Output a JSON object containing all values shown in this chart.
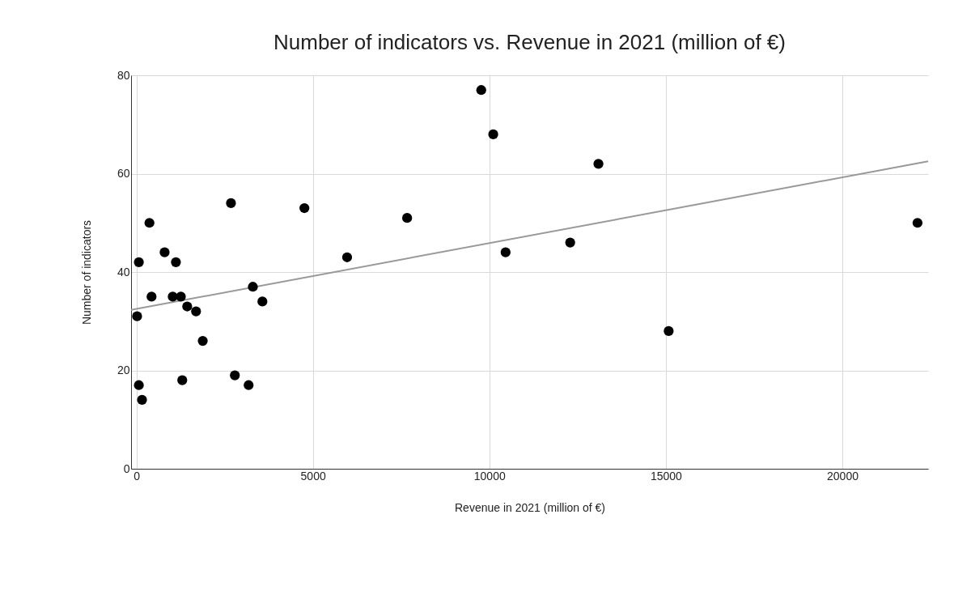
{
  "chart_data": {
    "type": "scatter",
    "title": "Number of indicators vs. Revenue in 2021 (million of €)",
    "xlabel": "Revenue in 2021 (million of €)",
    "ylabel": "Number of indicators",
    "xlim": [
      -150,
      22430
    ],
    "xticks": [
      0,
      5000,
      10000,
      15000,
      20000
    ],
    "ylim": [
      0,
      80
    ],
    "yticks": [
      0,
      20,
      40,
      60,
      80
    ],
    "grid": true,
    "marker": "circle",
    "series": [
      {
        "color": "#000000",
        "x": [
          20,
          70,
          70,
          160,
          370,
          430,
          800,
          1030,
          1120,
          1260,
          1300,
          1440,
          1690,
          1880,
          2680,
          2790,
          3180,
          3300,
          3570,
          4760,
          5970,
          7670,
          9770,
          10110,
          10460,
          12290,
          13090,
          15080,
          22130
        ],
        "values": [
          31,
          42,
          17,
          14,
          50,
          35,
          44,
          35,
          42,
          35,
          18,
          33,
          32,
          26,
          54,
          19,
          17,
          37,
          34,
          53,
          43,
          51,
          77,
          68,
          44,
          46,
          62,
          28,
          50
        ]
      },
      {
        "type": "line",
        "color": "#999999",
        "line_style": "solid",
        "marker": "none",
        "x": [
          -150,
          22430
        ],
        "values": [
          32.3,
          62.5
        ]
      }
    ]
  }
}
